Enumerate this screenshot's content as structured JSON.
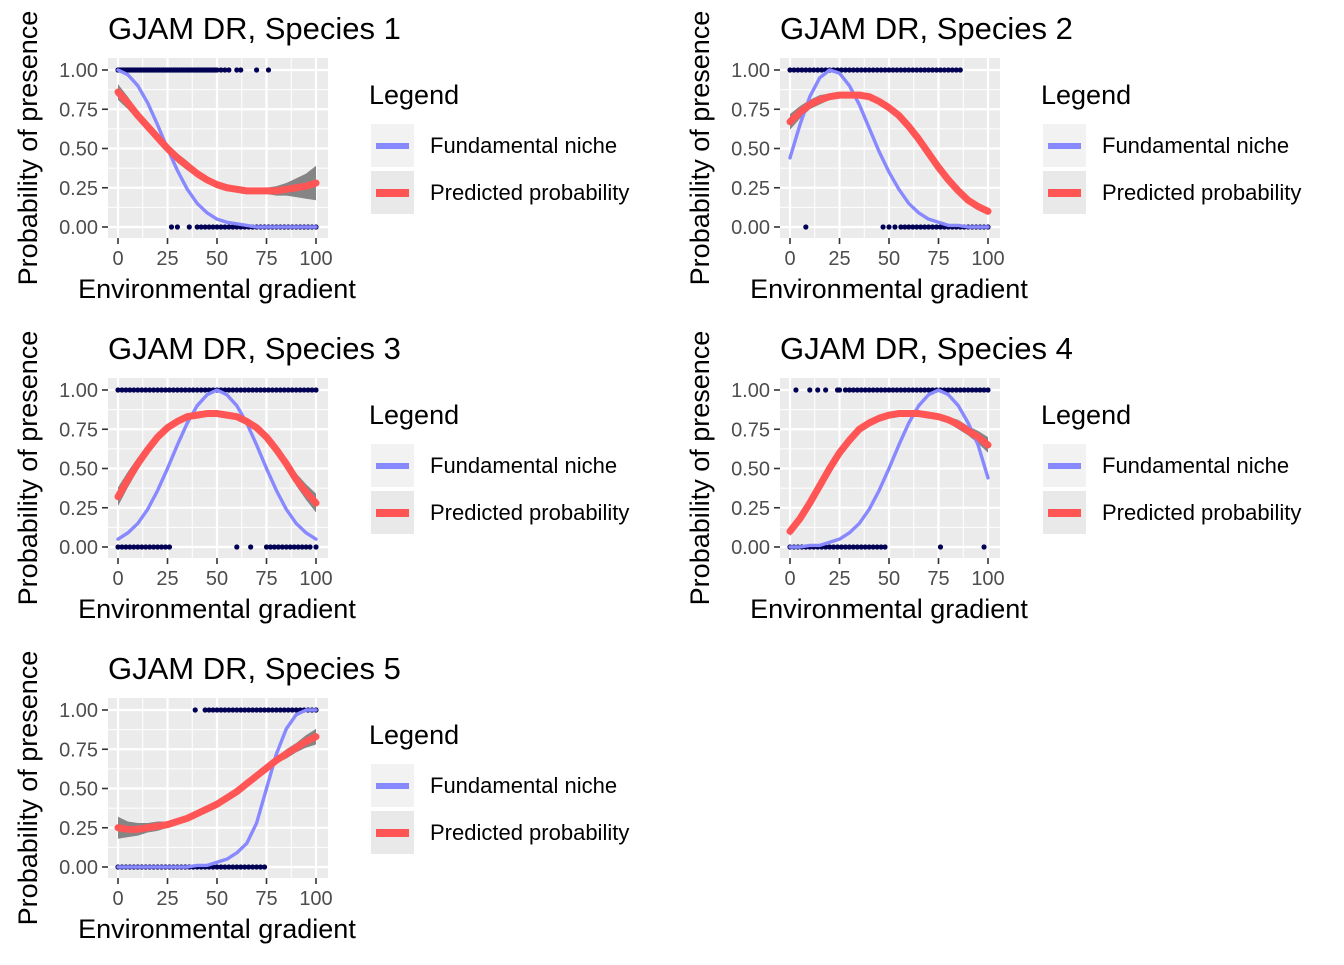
{
  "chart_data": [
    {
      "type": "line",
      "title": "GJAM DR, Species 1",
      "xlabel": "Environmental gradient",
      "ylabel": "Probability of presence",
      "xlim": [
        0,
        100
      ],
      "ylim": [
        0,
        1
      ],
      "x_ticks": [
        "0",
        "25",
        "50",
        "75",
        "100"
      ],
      "y_ticks": [
        "0.00",
        "0.25",
        "0.50",
        "0.75",
        "1.00"
      ],
      "grid": true,
      "legend": {
        "title": "Legend",
        "position": "right",
        "entries": [
          "Fundamental niche",
          "Predicted probability"
        ]
      },
      "series": [
        {
          "name": "Fundamental niche",
          "color": "#8888ff",
          "x": [
            0,
            5,
            10,
            15,
            20,
            25,
            30,
            35,
            40,
            45,
            50,
            55,
            60,
            65,
            70,
            75,
            80,
            85,
            90,
            95,
            100
          ],
          "y": [
            1.0,
            0.97,
            0.9,
            0.79,
            0.65,
            0.5,
            0.36,
            0.24,
            0.15,
            0.09,
            0.05,
            0.03,
            0.02,
            0.01,
            0.0,
            0.0,
            0.0,
            0.0,
            0.0,
            0.0,
            0.0
          ]
        },
        {
          "name": "Predicted probability",
          "color": "#ff5555",
          "x": [
            0,
            5,
            10,
            15,
            20,
            25,
            30,
            35,
            40,
            45,
            50,
            55,
            60,
            65,
            70,
            75,
            80,
            85,
            90,
            95,
            100
          ],
          "y": [
            0.86,
            0.79,
            0.71,
            0.64,
            0.57,
            0.5,
            0.44,
            0.39,
            0.34,
            0.3,
            0.27,
            0.25,
            0.24,
            0.23,
            0.23,
            0.23,
            0.23,
            0.24,
            0.25,
            0.26,
            0.28
          ],
          "band": [
            0.05,
            0.04,
            0.03,
            0.03,
            0.03,
            0.03,
            0.03,
            0.03,
            0.02,
            0.02,
            0.02,
            0.02,
            0.02,
            0.02,
            0.02,
            0.02,
            0.03,
            0.04,
            0.06,
            0.08,
            0.11
          ]
        }
      ],
      "points_present": [
        0,
        1,
        2,
        3,
        4,
        5,
        6,
        7,
        8,
        9,
        10,
        11,
        12,
        13,
        14,
        15,
        16,
        17,
        18,
        19,
        20,
        21,
        22,
        23,
        24,
        25,
        26,
        27,
        28,
        29,
        30,
        31,
        32,
        33,
        34,
        35,
        36,
        37,
        38,
        39,
        40,
        41,
        42,
        43,
        44,
        45,
        46,
        47,
        48,
        49,
        50,
        52,
        54,
        56,
        60,
        62,
        70,
        76
      ],
      "points_absent": [
        27,
        30,
        36,
        40,
        42,
        44,
        46,
        48,
        50,
        52,
        54,
        56,
        58,
        60,
        62,
        64,
        66,
        68,
        70,
        72,
        74,
        76,
        78,
        80,
        82,
        84,
        86,
        88,
        90,
        92,
        94,
        96,
        98,
        100
      ]
    },
    {
      "type": "line",
      "title": "GJAM DR, Species 2",
      "xlabel": "Environmental gradient",
      "ylabel": "Probability of presence",
      "xlim": [
        0,
        100
      ],
      "ylim": [
        0,
        1
      ],
      "x_ticks": [
        "0",
        "25",
        "50",
        "75",
        "100"
      ],
      "y_ticks": [
        "0.00",
        "0.25",
        "0.50",
        "0.75",
        "1.00"
      ],
      "grid": true,
      "legend": {
        "title": "Legend",
        "position": "right",
        "entries": [
          "Fundamental niche",
          "Predicted probability"
        ]
      },
      "series": [
        {
          "name": "Fundamental niche",
          "color": "#8888ff",
          "x": [
            0,
            5,
            10,
            15,
            20,
            25,
            30,
            35,
            40,
            45,
            50,
            55,
            60,
            65,
            70,
            75,
            80,
            85,
            90,
            95,
            100
          ],
          "y": [
            0.44,
            0.65,
            0.83,
            0.95,
            1.0,
            0.98,
            0.9,
            0.78,
            0.63,
            0.48,
            0.35,
            0.24,
            0.15,
            0.09,
            0.05,
            0.03,
            0.01,
            0.01,
            0.0,
            0.0,
            0.0
          ]
        },
        {
          "name": "Predicted probability",
          "color": "#ff5555",
          "x": [
            0,
            5,
            10,
            15,
            20,
            25,
            30,
            35,
            40,
            45,
            50,
            55,
            60,
            65,
            70,
            75,
            80,
            85,
            90,
            95,
            100
          ],
          "y": [
            0.67,
            0.73,
            0.78,
            0.81,
            0.83,
            0.84,
            0.84,
            0.84,
            0.83,
            0.8,
            0.76,
            0.71,
            0.64,
            0.56,
            0.47,
            0.38,
            0.3,
            0.23,
            0.17,
            0.13,
            0.1
          ],
          "band": [
            0.05,
            0.04,
            0.03,
            0.03,
            0.02,
            0.02,
            0.02,
            0.02,
            0.02,
            0.02,
            0.02,
            0.02,
            0.02,
            0.02,
            0.02,
            0.02,
            0.02,
            0.02,
            0.02,
            0.02,
            0.02
          ]
        }
      ],
      "points_present": [
        0,
        2,
        4,
        6,
        8,
        10,
        12,
        14,
        16,
        18,
        20,
        22,
        24,
        26,
        28,
        30,
        32,
        34,
        36,
        38,
        40,
        42,
        44,
        46,
        48,
        50,
        52,
        54,
        56,
        58,
        60,
        62,
        64,
        66,
        68,
        70,
        72,
        74,
        76,
        78,
        80,
        82,
        84,
        86
      ],
      "points_absent": [
        8,
        47,
        50,
        53,
        56,
        58,
        60,
        62,
        64,
        66,
        68,
        70,
        72,
        74,
        76,
        78,
        80,
        82,
        84,
        86,
        88,
        90,
        92,
        94,
        96,
        98,
        100
      ]
    },
    {
      "type": "line",
      "title": "GJAM DR, Species 3",
      "xlabel": "Environmental gradient",
      "ylabel": "Probability of presence",
      "xlim": [
        0,
        100
      ],
      "ylim": [
        0,
        1
      ],
      "x_ticks": [
        "0",
        "25",
        "50",
        "75",
        "100"
      ],
      "y_ticks": [
        "0.00",
        "0.25",
        "0.50",
        "0.75",
        "1.00"
      ],
      "grid": true,
      "legend": {
        "title": "Legend",
        "position": "right",
        "entries": [
          "Fundamental niche",
          "Predicted probability"
        ]
      },
      "series": [
        {
          "name": "Fundamental niche",
          "color": "#8888ff",
          "x": [
            0,
            5,
            10,
            15,
            20,
            25,
            30,
            35,
            40,
            45,
            50,
            55,
            60,
            65,
            70,
            75,
            80,
            85,
            90,
            95,
            100
          ],
          "y": [
            0.05,
            0.09,
            0.15,
            0.24,
            0.36,
            0.5,
            0.65,
            0.79,
            0.9,
            0.97,
            1.0,
            0.97,
            0.9,
            0.79,
            0.65,
            0.5,
            0.36,
            0.24,
            0.15,
            0.09,
            0.05
          ]
        },
        {
          "name": "Predicted probability",
          "color": "#ff5555",
          "x": [
            0,
            5,
            10,
            15,
            20,
            25,
            30,
            35,
            40,
            45,
            50,
            55,
            60,
            65,
            70,
            75,
            80,
            85,
            90,
            95,
            100
          ],
          "y": [
            0.32,
            0.43,
            0.53,
            0.62,
            0.7,
            0.76,
            0.8,
            0.83,
            0.84,
            0.85,
            0.85,
            0.84,
            0.83,
            0.8,
            0.76,
            0.7,
            0.62,
            0.53,
            0.43,
            0.35,
            0.28
          ],
          "band": [
            0.06,
            0.05,
            0.04,
            0.03,
            0.03,
            0.02,
            0.02,
            0.02,
            0.02,
            0.02,
            0.02,
            0.02,
            0.02,
            0.02,
            0.02,
            0.02,
            0.03,
            0.03,
            0.04,
            0.05,
            0.06
          ]
        }
      ],
      "points_present": [
        0,
        2,
        4,
        6,
        8,
        10,
        12,
        14,
        16,
        18,
        20,
        22,
        24,
        26,
        28,
        30,
        32,
        34,
        36,
        38,
        40,
        42,
        44,
        46,
        48,
        50,
        52,
        54,
        56,
        58,
        60,
        62,
        64,
        66,
        68,
        70,
        72,
        74,
        76,
        78,
        80,
        82,
        84,
        86,
        88,
        90,
        92,
        94,
        96,
        98,
        100
      ],
      "points_absent": [
        0,
        2,
        4,
        6,
        8,
        10,
        12,
        14,
        16,
        18,
        20,
        22,
        24,
        26,
        60,
        67,
        75,
        77,
        79,
        81,
        83,
        85,
        87,
        89,
        91,
        93,
        95,
        97,
        100
      ]
    },
    {
      "type": "line",
      "title": "GJAM DR, Species 4",
      "xlabel": "Environmental gradient",
      "ylabel": "Probability of presence",
      "xlim": [
        0,
        100
      ],
      "ylim": [
        0,
        1
      ],
      "x_ticks": [
        "0",
        "25",
        "50",
        "75",
        "100"
      ],
      "y_ticks": [
        "0.00",
        "0.25",
        "0.50",
        "0.75",
        "1.00"
      ],
      "grid": true,
      "legend": {
        "title": "Legend",
        "position": "right",
        "entries": [
          "Fundamental niche",
          "Predicted probability"
        ]
      },
      "series": [
        {
          "name": "Fundamental niche",
          "color": "#8888ff",
          "x": [
            0,
            5,
            10,
            15,
            20,
            25,
            30,
            35,
            40,
            45,
            50,
            55,
            60,
            65,
            70,
            75,
            80,
            85,
            90,
            95,
            100
          ],
          "y": [
            0.0,
            0.0,
            0.01,
            0.01,
            0.03,
            0.05,
            0.09,
            0.15,
            0.24,
            0.36,
            0.5,
            0.65,
            0.79,
            0.9,
            0.97,
            1.0,
            0.97,
            0.9,
            0.79,
            0.65,
            0.44
          ]
        },
        {
          "name": "Predicted probability",
          "color": "#ff5555",
          "x": [
            0,
            5,
            10,
            15,
            20,
            25,
            30,
            35,
            40,
            45,
            50,
            55,
            60,
            65,
            70,
            75,
            80,
            85,
            90,
            95,
            100
          ],
          "y": [
            0.1,
            0.18,
            0.28,
            0.39,
            0.5,
            0.6,
            0.68,
            0.75,
            0.79,
            0.82,
            0.84,
            0.85,
            0.85,
            0.85,
            0.84,
            0.83,
            0.81,
            0.78,
            0.74,
            0.7,
            0.65
          ],
          "band": [
            0.03,
            0.03,
            0.02,
            0.02,
            0.02,
            0.02,
            0.02,
            0.02,
            0.02,
            0.02,
            0.02,
            0.02,
            0.02,
            0.02,
            0.02,
            0.02,
            0.02,
            0.03,
            0.03,
            0.04,
            0.05
          ]
        }
      ],
      "points_present": [
        3,
        10,
        14,
        18,
        24,
        25,
        28,
        30,
        32,
        34,
        36,
        38,
        40,
        42,
        44,
        46,
        48,
        50,
        52,
        54,
        56,
        58,
        60,
        62,
        64,
        66,
        68,
        70,
        72,
        74,
        76,
        78,
        80,
        82,
        84,
        86,
        88,
        90,
        92,
        94,
        96,
        98,
        100
      ],
      "points_absent": [
        0,
        2,
        4,
        6,
        8,
        10,
        12,
        14,
        16,
        18,
        20,
        22,
        24,
        26,
        28,
        30,
        32,
        34,
        36,
        38,
        40,
        42,
        44,
        46,
        48,
        76,
        98
      ]
    },
    {
      "type": "line",
      "title": "GJAM DR, Species 5",
      "xlabel": "Environmental gradient",
      "ylabel": "Probability of presence",
      "xlim": [
        0,
        100
      ],
      "ylim": [
        0,
        1
      ],
      "x_ticks": [
        "0",
        "25",
        "50",
        "75",
        "100"
      ],
      "y_ticks": [
        "0.00",
        "0.25",
        "0.50",
        "0.75",
        "1.00"
      ],
      "grid": true,
      "legend": {
        "title": "Legend",
        "position": "right",
        "entries": [
          "Fundamental niche",
          "Predicted probability"
        ]
      },
      "series": [
        {
          "name": "Fundamental niche",
          "color": "#8888ff",
          "x": [
            0,
            5,
            10,
            15,
            20,
            25,
            30,
            35,
            40,
            45,
            50,
            55,
            60,
            65,
            70,
            75,
            80,
            85,
            90,
            95,
            100
          ],
          "y": [
            0.0,
            0.0,
            0.0,
            0.0,
            0.0,
            0.0,
            0.0,
            0.0,
            0.01,
            0.01,
            0.03,
            0.05,
            0.09,
            0.15,
            0.28,
            0.5,
            0.72,
            0.88,
            0.97,
            1.0,
            1.0
          ]
        },
        {
          "name": "Predicted probability",
          "color": "#ff5555",
          "x": [
            0,
            5,
            10,
            15,
            20,
            25,
            30,
            35,
            40,
            45,
            50,
            55,
            60,
            65,
            70,
            75,
            80,
            85,
            90,
            95,
            100
          ],
          "y": [
            0.25,
            0.24,
            0.24,
            0.25,
            0.26,
            0.27,
            0.29,
            0.31,
            0.34,
            0.37,
            0.4,
            0.44,
            0.48,
            0.53,
            0.58,
            0.63,
            0.68,
            0.72,
            0.76,
            0.8,
            0.83
          ],
          "band": [
            0.07,
            0.05,
            0.04,
            0.03,
            0.03,
            0.02,
            0.02,
            0.02,
            0.02,
            0.02,
            0.02,
            0.02,
            0.02,
            0.02,
            0.02,
            0.02,
            0.02,
            0.03,
            0.03,
            0.04,
            0.05
          ]
        }
      ],
      "points_present": [
        39,
        44,
        46,
        48,
        50,
        52,
        54,
        56,
        58,
        60,
        62,
        64,
        66,
        68,
        70,
        72,
        74,
        76,
        78,
        80,
        82,
        84,
        86,
        88,
        90,
        92,
        94,
        96,
        98,
        100
      ],
      "points_absent": [
        0,
        2,
        4,
        6,
        8,
        10,
        12,
        14,
        16,
        18,
        20,
        22,
        24,
        26,
        28,
        30,
        32,
        34,
        36,
        38,
        40,
        42,
        44,
        46,
        48,
        50,
        52,
        54,
        56,
        58,
        60,
        62,
        64,
        66,
        68,
        70,
        72,
        74
      ]
    }
  ]
}
